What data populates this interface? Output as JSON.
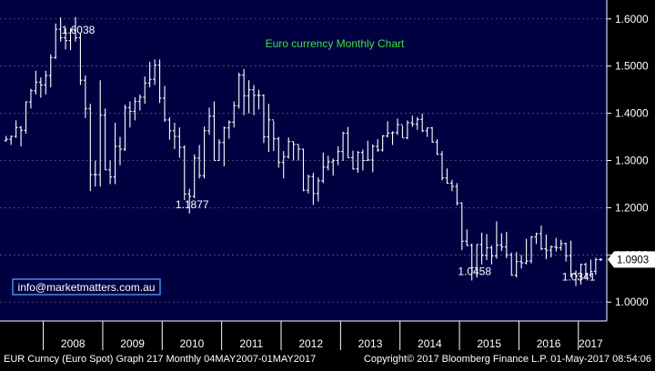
{
  "chart_data": {
    "type": "ohlc-bar",
    "title": "Euro currency Monthly Chart",
    "watermark": "info@marketmatters.com.au",
    "yaxis": {
      "side": "right",
      "ylim": [
        0.96,
        1.64
      ],
      "ticks": [
        1.0,
        1.1,
        1.2,
        1.3,
        1.4,
        1.5,
        1.6
      ],
      "tick_labels": [
        "1.0000",
        "1.1000",
        "1.2000",
        "1.3000",
        "1.4000",
        "1.5000",
        "1.6000"
      ]
    },
    "xaxis": {
      "years": [
        "2008",
        "2009",
        "2010",
        "2011",
        "2012",
        "2013",
        "2014",
        "2015",
        "2016",
        "2017"
      ]
    },
    "last_value_label": "1.0903",
    "last_value": 1.0903,
    "annotations": [
      {
        "text": "1.6038",
        "value": 1.6038
      },
      {
        "text": "1.1877",
        "value": 1.1877
      },
      {
        "text": "1.0458",
        "value": 1.0458
      },
      {
        "text": "1.0341",
        "value": 1.0341
      }
    ],
    "x_start": "2007-05",
    "x_end": "2017-05",
    "ohlc": [
      [
        "2007-05",
        1.342,
        1.352,
        1.34,
        1.345
      ],
      [
        "2007-06",
        1.345,
        1.353,
        1.333,
        1.351
      ],
      [
        "2007-07",
        1.351,
        1.385,
        1.348,
        1.37
      ],
      [
        "2007-08",
        1.37,
        1.373,
        1.33,
        1.364
      ],
      [
        "2007-09",
        1.364,
        1.425,
        1.357,
        1.424
      ],
      [
        "2007-10",
        1.424,
        1.452,
        1.41,
        1.448
      ],
      [
        "2007-11",
        1.448,
        1.49,
        1.44,
        1.466
      ],
      [
        "2007-12",
        1.466,
        1.476,
        1.433,
        1.46
      ],
      [
        "2008-01",
        1.46,
        1.49,
        1.44,
        1.48
      ],
      [
        "2008-02",
        1.48,
        1.525,
        1.455,
        1.518
      ],
      [
        "2008-03",
        1.518,
        1.59,
        1.515,
        1.578
      ],
      [
        "2008-04",
        1.578,
        1.603,
        1.552,
        1.56
      ],
      [
        "2008-05",
        1.56,
        1.58,
        1.535,
        1.554
      ],
      [
        "2008-06",
        1.554,
        1.58,
        1.534,
        1.575
      ],
      [
        "2008-07",
        1.575,
        1.6038,
        1.552,
        1.56
      ],
      [
        "2008-08",
        1.56,
        1.57,
        1.46,
        1.47
      ],
      [
        "2008-09",
        1.47,
        1.48,
        1.39,
        1.41
      ],
      [
        "2008-10",
        1.41,
        1.42,
        1.235,
        1.27
      ],
      [
        "2008-11",
        1.27,
        1.3,
        1.245,
        1.27
      ],
      [
        "2008-12",
        1.27,
        1.47,
        1.245,
        1.396
      ],
      [
        "2009-01",
        1.396,
        1.41,
        1.28,
        1.28
      ],
      [
        "2009-02",
        1.28,
        1.3,
        1.25,
        1.265
      ],
      [
        "2009-03",
        1.265,
        1.38,
        1.25,
        1.33
      ],
      [
        "2009-04",
        1.33,
        1.35,
        1.29,
        1.324
      ],
      [
        "2009-05",
        1.324,
        1.418,
        1.32,
        1.412
      ],
      [
        "2009-06",
        1.412,
        1.425,
        1.37,
        1.404
      ],
      [
        "2009-07",
        1.404,
        1.434,
        1.385,
        1.425
      ],
      [
        "2009-08",
        1.425,
        1.44,
        1.406,
        1.434
      ],
      [
        "2009-09",
        1.434,
        1.478,
        1.42,
        1.464
      ],
      [
        "2009-10",
        1.464,
        1.509,
        1.455,
        1.472
      ],
      [
        "2009-11",
        1.472,
        1.514,
        1.46,
        1.502
      ],
      [
        "2009-12",
        1.502,
        1.514,
        1.422,
        1.432
      ],
      [
        "2010-01",
        1.432,
        1.458,
        1.382,
        1.386
      ],
      [
        "2010-02",
        1.386,
        1.392,
        1.344,
        1.363
      ],
      [
        "2010-03",
        1.363,
        1.38,
        1.324,
        1.351
      ],
      [
        "2010-04",
        1.351,
        1.37,
        1.306,
        1.328
      ],
      [
        "2010-05",
        1.328,
        1.332,
        1.216,
        1.229
      ],
      [
        "2010-06",
        1.229,
        1.24,
        1.1877,
        1.224
      ],
      [
        "2010-07",
        1.224,
        1.313,
        1.22,
        1.305
      ],
      [
        "2010-08",
        1.305,
        1.333,
        1.262,
        1.268
      ],
      [
        "2010-09",
        1.268,
        1.372,
        1.262,
        1.363
      ],
      [
        "2010-10",
        1.363,
        1.412,
        1.355,
        1.394
      ],
      [
        "2010-11",
        1.394,
        1.425,
        1.3,
        1.3
      ],
      [
        "2010-12",
        1.3,
        1.345,
        1.3,
        1.338
      ],
      [
        "2011-01",
        1.338,
        1.372,
        1.288,
        1.369
      ],
      [
        "2011-02",
        1.369,
        1.385,
        1.346,
        1.381
      ],
      [
        "2011-03",
        1.381,
        1.425,
        1.37,
        1.416
      ],
      [
        "2011-04",
        1.416,
        1.486,
        1.41,
        1.481
      ],
      [
        "2011-05",
        1.481,
        1.494,
        1.396,
        1.437
      ],
      [
        "2011-06",
        1.437,
        1.47,
        1.4,
        1.45
      ],
      [
        "2011-07",
        1.45,
        1.46,
        1.396,
        1.438
      ],
      [
        "2011-08",
        1.438,
        1.45,
        1.408,
        1.438
      ],
      [
        "2011-09",
        1.438,
        1.44,
        1.337,
        1.35
      ],
      [
        "2011-10",
        1.35,
        1.42,
        1.318,
        1.386
      ],
      [
        "2011-11",
        1.386,
        1.384,
        1.32,
        1.346
      ],
      [
        "2011-12",
        1.346,
        1.35,
        1.285,
        1.296
      ],
      [
        "2012-01",
        1.296,
        1.32,
        1.262,
        1.308
      ],
      [
        "2012-02",
        1.308,
        1.349,
        1.304,
        1.34
      ],
      [
        "2012-03",
        1.34,
        1.34,
        1.3,
        1.334
      ],
      [
        "2012-04",
        1.334,
        1.334,
        1.3,
        1.324
      ],
      [
        "2012-05",
        1.324,
        1.325,
        1.235,
        1.237
      ],
      [
        "2012-06",
        1.237,
        1.27,
        1.23,
        1.266
      ],
      [
        "2012-07",
        1.266,
        1.274,
        1.206,
        1.23
      ],
      [
        "2012-08",
        1.23,
        1.264,
        1.213,
        1.257
      ],
      [
        "2012-09",
        1.257,
        1.317,
        1.252,
        1.286
      ],
      [
        "2012-10",
        1.286,
        1.31,
        1.279,
        1.297
      ],
      [
        "2012-11",
        1.297,
        1.304,
        1.268,
        1.3
      ],
      [
        "2012-12",
        1.3,
        1.33,
        1.29,
        1.319
      ],
      [
        "2013-01",
        1.319,
        1.361,
        1.299,
        1.358
      ],
      [
        "2013-02",
        1.358,
        1.371,
        1.306,
        1.306
      ],
      [
        "2013-03",
        1.306,
        1.321,
        1.281,
        1.282
      ],
      [
        "2013-04",
        1.282,
        1.32,
        1.274,
        1.317
      ],
      [
        "2013-05",
        1.317,
        1.323,
        1.279,
        1.3
      ],
      [
        "2013-06",
        1.3,
        1.342,
        1.3,
        1.301
      ],
      [
        "2013-07",
        1.301,
        1.334,
        1.275,
        1.33
      ],
      [
        "2013-08",
        1.33,
        1.345,
        1.318,
        1.322
      ],
      [
        "2013-09",
        1.322,
        1.354,
        1.319,
        1.352
      ],
      [
        "2013-10",
        1.352,
        1.383,
        1.349,
        1.358
      ],
      [
        "2013-11",
        1.358,
        1.362,
        1.333,
        1.359
      ],
      [
        "2013-12",
        1.359,
        1.389,
        1.354,
        1.376
      ],
      [
        "2014-01",
        1.376,
        1.374,
        1.349,
        1.348
      ],
      [
        "2014-02",
        1.348,
        1.385,
        1.345,
        1.38
      ],
      [
        "2014-03",
        1.38,
        1.395,
        1.371,
        1.377
      ],
      [
        "2014-04",
        1.377,
        1.392,
        1.365,
        1.387
      ],
      [
        "2014-05",
        1.387,
        1.399,
        1.36,
        1.363
      ],
      [
        "2014-06",
        1.363,
        1.37,
        1.35,
        1.369
      ],
      [
        "2014-07",
        1.369,
        1.371,
        1.338,
        1.339
      ],
      [
        "2014-08",
        1.339,
        1.345,
        1.312,
        1.313
      ],
      [
        "2014-09",
        1.313,
        1.32,
        1.258,
        1.263
      ],
      [
        "2014-10",
        1.263,
        1.283,
        1.251,
        1.252
      ],
      [
        "2014-11",
        1.252,
        1.259,
        1.235,
        1.245
      ],
      [
        "2014-12",
        1.245,
        1.252,
        1.205,
        1.21
      ],
      [
        "2015-01",
        1.21,
        1.211,
        1.11,
        1.129
      ],
      [
        "2015-02",
        1.129,
        1.154,
        1.119,
        1.12
      ],
      [
        "2015-03",
        1.12,
        1.124,
        1.0458,
        1.073
      ],
      [
        "2015-04",
        1.073,
        1.122,
        1.052,
        1.122
      ],
      [
        "2015-05",
        1.122,
        1.147,
        1.08,
        1.099
      ],
      [
        "2015-06",
        1.099,
        1.144,
        1.089,
        1.115
      ],
      [
        "2015-07",
        1.115,
        1.12,
        1.08,
        1.098
      ],
      [
        "2015-08",
        1.098,
        1.171,
        1.092,
        1.121
      ],
      [
        "2015-09",
        1.121,
        1.146,
        1.108,
        1.117
      ],
      [
        "2015-10",
        1.117,
        1.149,
        1.093,
        1.1
      ],
      [
        "2015-11",
        1.1,
        1.105,
        1.056,
        1.057
      ],
      [
        "2015-12",
        1.057,
        1.106,
        1.052,
        1.086
      ],
      [
        "2016-01",
        1.086,
        1.1,
        1.071,
        1.083
      ],
      [
        "2016-02",
        1.083,
        1.134,
        1.08,
        1.087
      ],
      [
        "2016-03",
        1.087,
        1.14,
        1.082,
        1.138
      ],
      [
        "2016-04",
        1.138,
        1.147,
        1.123,
        1.145
      ],
      [
        "2016-05",
        1.145,
        1.162,
        1.11,
        1.113
      ],
      [
        "2016-06",
        1.113,
        1.143,
        1.091,
        1.11
      ],
      [
        "2016-07",
        1.11,
        1.12,
        1.095,
        1.117
      ],
      [
        "2016-08",
        1.117,
        1.136,
        1.107,
        1.115
      ],
      [
        "2016-09",
        1.115,
        1.132,
        1.109,
        1.124
      ],
      [
        "2016-10",
        1.124,
        1.126,
        1.086,
        1.098
      ],
      [
        "2016-11",
        1.098,
        1.13,
        1.053,
        1.059
      ],
      [
        "2016-12",
        1.059,
        1.067,
        1.0341,
        1.055
      ],
      [
        "2017-01",
        1.055,
        1.081,
        1.037,
        1.08
      ],
      [
        "2017-02",
        1.08,
        1.083,
        1.049,
        1.058
      ],
      [
        "2017-03",
        1.058,
        1.09,
        1.052,
        1.065
      ],
      [
        "2017-04",
        1.065,
        1.094,
        1.058,
        1.09
      ],
      [
        "2017-05",
        1.09,
        1.093,
        1.087,
        1.0903
      ]
    ]
  },
  "footer": {
    "left": "EUR Curncy (Euro Spot) Graph 217  Monthly 04MAY2007-01MAY2017",
    "right": "Copyright© 2017 Bloomberg Finance L.P.    01-May-2017 08:54:06"
  },
  "colors": {
    "plot_background": "#010142",
    "bars": "#ffffff",
    "title": "#3fe03f",
    "watermark_border": "#4fa3ff",
    "watermark_text": "#ffffff",
    "gridline": "#5a5a7a",
    "axis_text": "#ffffff",
    "year_band": "#ffffff",
    "last_value_box": "#ffffff",
    "last_value_text": "#000000",
    "footer_text": "#ffffff"
  }
}
